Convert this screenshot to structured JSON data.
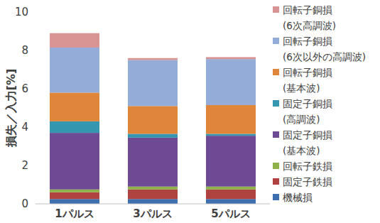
{
  "chart_data": {
    "type": "bar",
    "stacked": true,
    "y_label": "損失／入力[%]",
    "categories": [
      "1パルス",
      "3パルス",
      "5パルス"
    ],
    "ylim": [
      0,
      10
    ],
    "yticks": [
      0,
      2,
      4,
      6,
      8,
      10
    ],
    "grid": false,
    "legend": "right",
    "series": [
      {
        "name": "機械損",
        "color": "#3e6fb0",
        "values": [
          0.25,
          0.25,
          0.25
        ]
      },
      {
        "name": "固定子鉄損",
        "color": "#b0423f",
        "values": [
          0.35,
          0.5,
          0.5
        ]
      },
      {
        "name": "回転子鉄損",
        "color": "#8fb14a",
        "values": [
          0.15,
          0.15,
          0.15
        ]
      },
      {
        "name": "固定子銅損(基本波)",
        "color": "#6e4a94",
        "values": [
          2.95,
          2.55,
          2.65
        ]
      },
      {
        "name": "固定子銅損(高調波)",
        "color": "#3596b0",
        "values": [
          0.6,
          0.2,
          0.1
        ]
      },
      {
        "name": "回転子銅損(基本波)",
        "color": "#e0863a",
        "values": [
          1.5,
          1.45,
          1.5
        ]
      },
      {
        "name": "回転子銅損(6次以外の高調波)",
        "color": "#94acd8",
        "values": [
          2.35,
          2.4,
          2.4
        ]
      },
      {
        "name": "回転子銅損(6次高調波)",
        "color": "#d89393",
        "values": [
          0.75,
          0.1,
          0.1
        ]
      }
    ]
  }
}
